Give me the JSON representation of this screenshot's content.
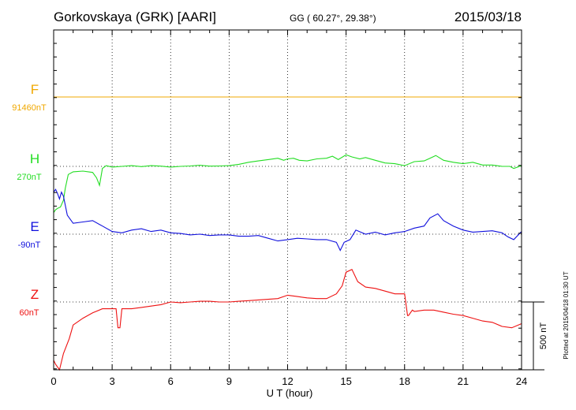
{
  "header": {
    "station": "Gorkovskaya (GRK)  [AARI]",
    "coords": "GG ( 60.27°,  29.38°)",
    "date": "2015/03/18"
  },
  "footer": {
    "plotted": "Plotted at 2015/04/18 01:30 UT",
    "scale_label": "500 nT"
  },
  "chart_data": {
    "type": "line",
    "xlabel": "U T (hour)",
    "xlim": [
      0,
      24
    ],
    "xticks": [
      0,
      3,
      6,
      9,
      12,
      15,
      18,
      21,
      24
    ],
    "scale_bar_nT": 500,
    "grid": "dotted",
    "series": [
      {
        "name": "F",
        "baseline_label": "91460nT",
        "color": "#f0a800",
        "x": [
          0,
          24
        ],
        "y": [
          0,
          0
        ]
      },
      {
        "name": "H",
        "baseline_label": "270nT",
        "color": "#22dd22",
        "x": [
          0,
          0.1,
          0.2,
          0.35,
          0.5,
          0.6,
          0.75,
          1.0,
          1.5,
          2.0,
          2.2,
          2.35,
          2.5,
          2.7,
          3.0,
          3.5,
          4.0,
          4.5,
          5.0,
          5.5,
          6.0,
          6.5,
          7.0,
          7.5,
          8.0,
          8.5,
          9.0,
          9.5,
          10.0,
          10.5,
          11.0,
          11.5,
          11.8,
          12.0,
          12.3,
          12.6,
          13.0,
          13.5,
          14.0,
          14.3,
          14.6,
          15.0,
          15.3,
          15.7,
          16.0,
          16.5,
          17.0,
          17.5,
          18.0,
          18.5,
          19.0,
          19.3,
          19.6,
          20.0,
          20.5,
          21.0,
          21.5,
          22.0,
          22.5,
          23.0,
          23.4,
          23.6,
          24.0
        ],
        "y": [
          -340,
          -320,
          -310,
          -300,
          -250,
          -160,
          -60,
          -40,
          -35,
          -45,
          -85,
          -140,
          -15,
          5,
          -5,
          0,
          5,
          -2,
          5,
          2,
          -5,
          0,
          3,
          8,
          2,
          3,
          5,
          15,
          30,
          40,
          50,
          60,
          45,
          55,
          60,
          45,
          40,
          55,
          60,
          75,
          50,
          85,
          70,
          55,
          65,
          45,
          25,
          20,
          5,
          35,
          40,
          60,
          80,
          45,
          30,
          20,
          30,
          10,
          10,
          0,
          0,
          -15,
          5
        ]
      },
      {
        "name": "E",
        "baseline_label": "-90nT",
        "color": "#1010dd",
        "x": [
          0,
          0.1,
          0.2,
          0.3,
          0.4,
          0.5,
          0.7,
          1.0,
          1.5,
          2.0,
          2.5,
          3.0,
          3.5,
          4.0,
          4.5,
          5.0,
          5.5,
          6.0,
          6.5,
          7.0,
          7.5,
          8.0,
          8.5,
          9.0,
          9.5,
          10.0,
          10.5,
          11.0,
          11.5,
          12.0,
          12.5,
          13.0,
          13.5,
          14.0,
          14.5,
          14.7,
          14.9,
          15.2,
          15.5,
          16.0,
          16.5,
          17.0,
          17.5,
          18.0,
          18.5,
          19.0,
          19.3,
          19.7,
          20.0,
          20.5,
          21.0,
          21.5,
          22.0,
          22.5,
          23.0,
          23.3,
          23.6,
          24.0
        ],
        "y": [
          310,
          330,
          300,
          260,
          310,
          280,
          140,
          80,
          90,
          100,
          60,
          20,
          10,
          30,
          40,
          20,
          30,
          10,
          5,
          -5,
          0,
          -10,
          -5,
          -5,
          -15,
          -15,
          -10,
          -30,
          -50,
          -40,
          -30,
          -35,
          -40,
          -40,
          -60,
          -120,
          -60,
          -40,
          30,
          0,
          15,
          -5,
          10,
          20,
          45,
          60,
          120,
          150,
          100,
          60,
          30,
          15,
          20,
          25,
          10,
          -20,
          -40,
          20
        ]
      },
      {
        "name": "Z",
        "baseline_label": "60nT",
        "color": "#ee1111",
        "x": [
          0,
          0.1,
          0.3,
          0.5,
          0.8,
          1.0,
          1.5,
          2.0,
          2.5,
          3.0,
          3.2,
          3.3,
          3.4,
          3.5,
          4.0,
          4.5,
          5.0,
          5.5,
          6.0,
          6.5,
          7.0,
          7.5,
          8.0,
          8.5,
          9.0,
          9.5,
          10.0,
          10.5,
          11.0,
          11.5,
          12.0,
          12.5,
          13.0,
          13.5,
          14.0,
          14.5,
          14.8,
          15.0,
          15.3,
          15.6,
          16.0,
          16.5,
          17.0,
          17.5,
          18.0,
          18.15,
          18.2,
          18.4,
          18.5,
          19.0,
          19.5,
          20.0,
          20.5,
          21.0,
          21.5,
          22.0,
          22.5,
          23.0,
          23.5,
          24.0
        ],
        "y": [
          -430,
          -460,
          -560,
          -380,
          -270,
          -170,
          -120,
          -80,
          -50,
          -50,
          -50,
          -190,
          -190,
          -50,
          -50,
          -40,
          -30,
          -20,
          0,
          -5,
          0,
          5,
          5,
          0,
          0,
          5,
          10,
          15,
          20,
          25,
          50,
          40,
          30,
          25,
          25,
          60,
          120,
          220,
          240,
          150,
          110,
          100,
          80,
          60,
          60,
          -100,
          -100,
          -60,
          -70,
          -60,
          -60,
          -75,
          -90,
          -100,
          -120,
          -140,
          -150,
          -180,
          -190,
          -160
        ]
      }
    ]
  }
}
